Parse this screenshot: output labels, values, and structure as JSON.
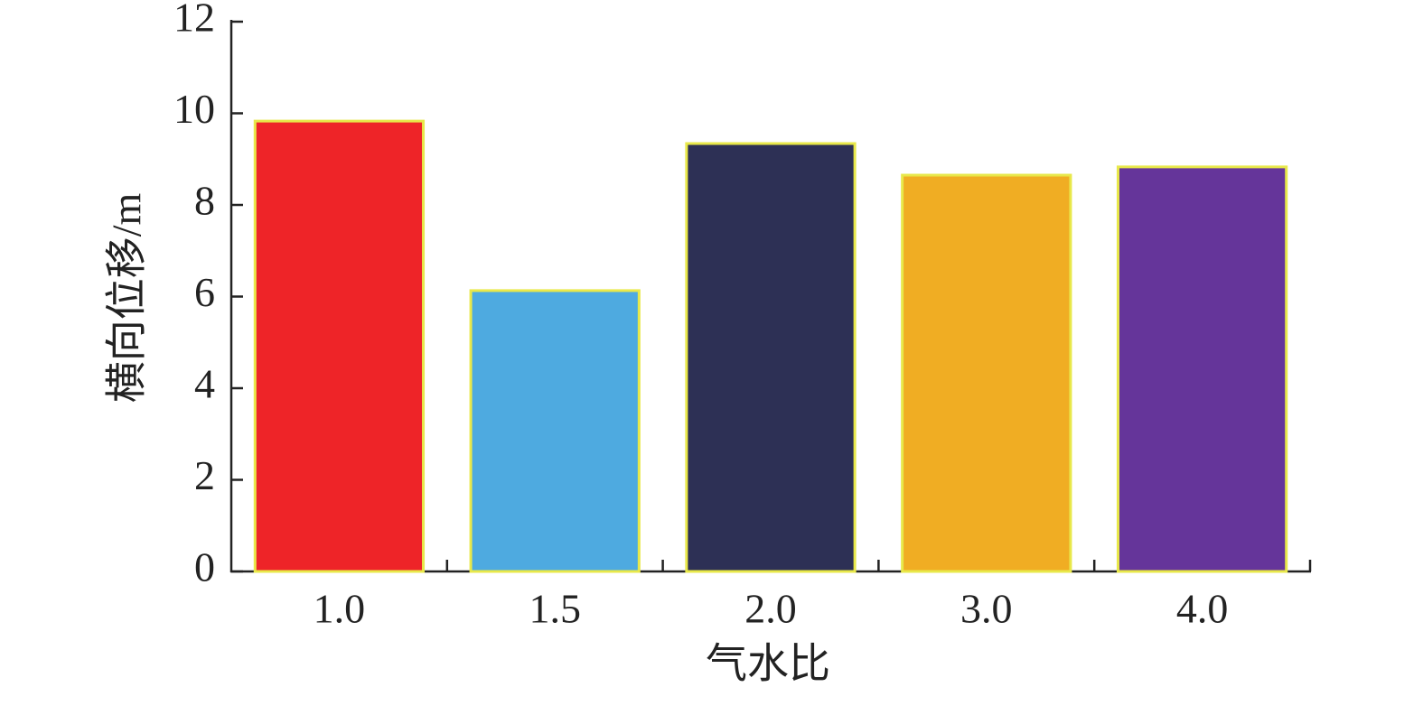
{
  "chart_data": {
    "type": "bar",
    "xlabel": "气水比",
    "ylabel": "横向位移/m",
    "categories": [
      "1.0",
      "1.5",
      "2.0",
      "3.0",
      "4.0"
    ],
    "values": [
      9.83,
      6.13,
      9.34,
      8.65,
      8.83
    ],
    "colors": [
      "#ee2428",
      "#4eaae0",
      "#2d3055",
      "#f0ad23",
      "#65359a"
    ],
    "edgecolor": "#e8e84a",
    "ylim": [
      0,
      12
    ],
    "yticks": [
      0,
      2,
      4,
      6,
      8,
      10,
      12
    ],
    "grid": false
  }
}
